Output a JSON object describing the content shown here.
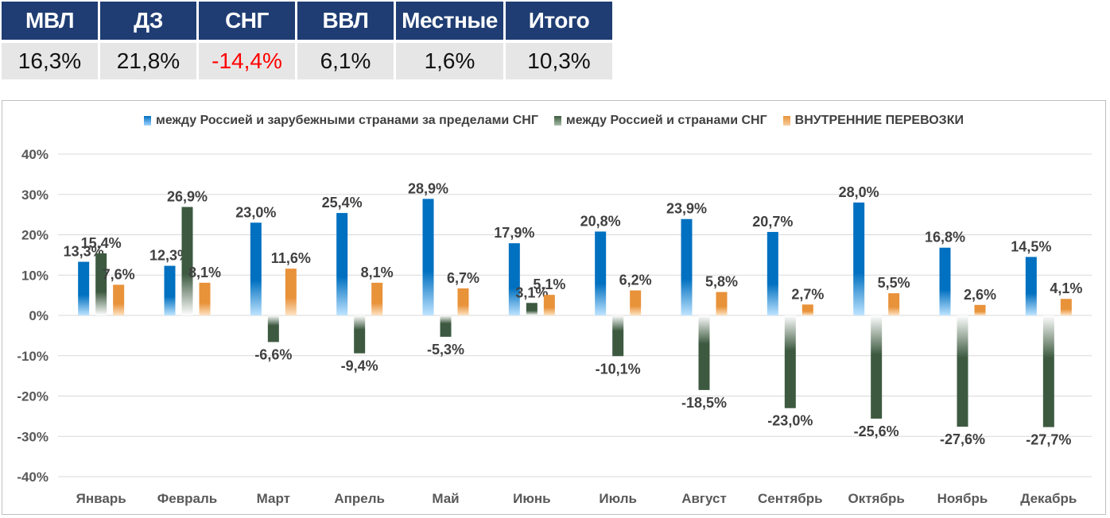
{
  "summary": {
    "headers": [
      "МВЛ",
      "ДЗ",
      "СНГ",
      "ВВЛ",
      "Местные",
      "Итого"
    ],
    "values": [
      "16,3%",
      "21,8%",
      "-14,4%",
      "6,1%",
      "1,6%",
      "10,3%"
    ],
    "negative_color": "#ff0000"
  },
  "chart_data": {
    "type": "bar",
    "categories": [
      "Январь",
      "Февраль",
      "Март",
      "Апрель",
      "Май",
      "Июнь",
      "Июль",
      "Август",
      "Сентябрь",
      "Октябрь",
      "Ноябрь",
      "Декабрь"
    ],
    "ylim": [
      -40,
      40
    ],
    "yticks": [
      40,
      30,
      20,
      10,
      0,
      -10,
      -20,
      -30,
      -40
    ],
    "ytick_labels": [
      "40%",
      "30%",
      "20%",
      "10%",
      "0%",
      "-10%",
      "-20%",
      "-30%",
      "-40%"
    ],
    "grid": true,
    "legend_position": "top",
    "series": [
      {
        "name": "между Россией и зарубежными странами за пределами СНГ",
        "color": "#0070c0",
        "values": [
          13.3,
          12.3,
          23.0,
          25.4,
          28.9,
          17.9,
          20.8,
          23.9,
          20.7,
          28.0,
          16.8,
          14.5
        ],
        "labels": [
          "13,3%",
          "12,3%",
          "23,0%",
          "25,4%",
          "28,9%",
          "17,9%",
          "20,8%",
          "23,9%",
          "20,7%",
          "28,0%",
          "16,8%",
          "14,5%"
        ]
      },
      {
        "name": "между Россией и  странами  СНГ",
        "color": "#3d5a40",
        "values": [
          15.4,
          26.9,
          -6.6,
          -9.4,
          -5.3,
          3.1,
          -10.1,
          -18.5,
          -23.0,
          -25.6,
          -27.6,
          -27.7
        ],
        "labels": [
          "15,4%",
          "26,9%",
          "-6,6%",
          "-9,4%",
          "-5,3%",
          "3,1%",
          "-10,1%",
          "-18,5%",
          "-23,0%",
          "-25,6%",
          "-27,6%",
          "-27,7%"
        ]
      },
      {
        "name": "ВНУТРЕННИЕ ПЕРЕВОЗКИ",
        "color": "#e8923a",
        "values": [
          7.6,
          8.1,
          11.6,
          8.1,
          6.7,
          5.1,
          6.2,
          5.8,
          2.7,
          5.5,
          2.6,
          4.1
        ],
        "labels": [
          "7,6%",
          "8,1%",
          "11,6%",
          "8,1%",
          "6,7%",
          "5,1%",
          "6,2%",
          "5,8%",
          "2,7%",
          "5,5%",
          "2,6%",
          "4,1%"
        ]
      }
    ]
  }
}
